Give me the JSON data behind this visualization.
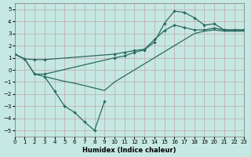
{
  "background_color": "#c5e8e2",
  "grid_color": "#c0a8a8",
  "line_color": "#2a6a60",
  "xlabel": "Humidex (Indice chaleur)",
  "xlim": [
    0,
    23
  ],
  "ylim": [
    -5.5,
    5.5
  ],
  "yticks": [
    -5,
    -4,
    -3,
    -2,
    -1,
    0,
    1,
    2,
    3,
    4,
    5
  ],
  "xticks": [
    0,
    1,
    2,
    3,
    4,
    5,
    6,
    7,
    8,
    9,
    10,
    11,
    12,
    13,
    14,
    15,
    16,
    17,
    18,
    19,
    20,
    21,
    22,
    23
  ],
  "lineA_x": [
    0,
    1,
    2,
    3,
    10,
    11,
    12,
    13,
    14,
    15,
    16,
    17,
    18,
    19,
    20,
    21,
    22,
    23
  ],
  "lineA_y": [
    1.3,
    0.9,
    0.85,
    0.85,
    1.3,
    1.45,
    1.6,
    1.7,
    2.5,
    3.25,
    3.7,
    3.5,
    3.3,
    3.3,
    3.45,
    3.3,
    3.3,
    3.3
  ],
  "lineB_x": [
    0,
    1,
    2,
    3,
    10,
    11,
    12,
    13,
    14,
    15,
    16,
    17,
    18,
    19,
    20,
    21,
    22,
    23
  ],
  "lineB_y": [
    1.3,
    0.9,
    -0.35,
    -0.35,
    1.0,
    1.15,
    1.45,
    1.65,
    2.3,
    3.85,
    4.85,
    4.75,
    4.3,
    3.7,
    3.8,
    3.3,
    3.3,
    3.3
  ],
  "lineC_x": [
    0,
    1,
    2,
    3,
    4,
    5,
    6,
    7,
    8,
    9,
    10,
    11,
    12,
    13,
    14,
    15,
    16,
    17,
    18,
    19,
    20,
    21,
    22,
    23
  ],
  "lineC_y": [
    1.3,
    0.9,
    -0.35,
    -0.55,
    -0.75,
    -0.95,
    -1.1,
    -1.3,
    -1.5,
    -1.7,
    -1.0,
    -0.5,
    0.0,
    0.5,
    1.0,
    1.5,
    2.0,
    2.5,
    3.0,
    3.2,
    3.3,
    3.2,
    3.2,
    3.2
  ],
  "lineD_x": [
    3,
    4,
    5,
    6,
    7,
    8,
    9
  ],
  "lineD_y": [
    -0.55,
    -1.75,
    -3.0,
    -3.5,
    -4.3,
    -5.0,
    -2.6
  ]
}
